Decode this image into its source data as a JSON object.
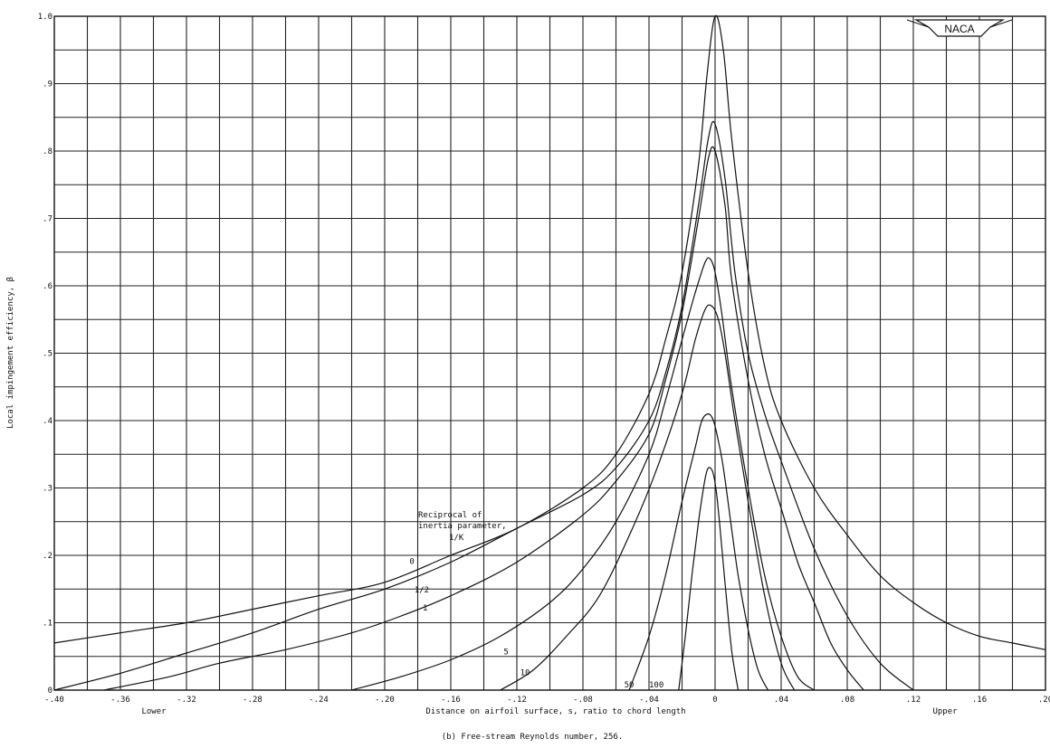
{
  "chart_data": {
    "type": "line",
    "xlabel": "Distance on airfoil surface, s, ratio to chord length",
    "ylabel": "Local impingement efficiency, β",
    "caption": "(b) Free-stream Reynolds number, 256.",
    "x_side_labels": {
      "left": "Lower",
      "right": "Upper"
    },
    "logo_text": "NACA",
    "xlim": [
      -0.4,
      0.2
    ],
    "ylim": [
      0,
      1.0
    ],
    "x_ticks": [
      {
        "v": -0.4,
        "label": "-.40"
      },
      {
        "v": -0.36,
        "label": "-.36"
      },
      {
        "v": -0.32,
        "label": "-.32"
      },
      {
        "v": -0.28,
        "label": "-.28"
      },
      {
        "v": -0.24,
        "label": "-.24"
      },
      {
        "v": -0.2,
        "label": "-.20"
      },
      {
        "v": -0.16,
        "label": "-.16"
      },
      {
        "v": -0.12,
        "label": "-.12"
      },
      {
        "v": -0.08,
        "label": "-.08"
      },
      {
        "v": -0.04,
        "label": "-.04"
      },
      {
        "v": 0.0,
        "label": "0"
      },
      {
        "v": 0.04,
        "label": ".04"
      },
      {
        "v": 0.08,
        "label": ".08"
      },
      {
        "v": 0.12,
        "label": ".12"
      },
      {
        "v": 0.16,
        "label": ".16"
      },
      {
        "v": 0.2,
        "label": ".20"
      }
    ],
    "y_ticks": [
      {
        "v": 0.0,
        "label": "0"
      },
      {
        "v": 0.1,
        "label": ".1"
      },
      {
        "v": 0.2,
        "label": ".2"
      },
      {
        "v": 0.3,
        "label": ".3"
      },
      {
        "v": 0.4,
        "label": ".4"
      },
      {
        "v": 0.5,
        "label": ".5"
      },
      {
        "v": 0.6,
        "label": ".6"
      },
      {
        "v": 0.7,
        "label": ".7"
      },
      {
        "v": 0.8,
        "label": ".8"
      },
      {
        "v": 0.9,
        "label": ".9"
      },
      {
        "v": 1.0,
        "label": "1.0"
      }
    ],
    "grid": true,
    "minor_grid_x_step": 0.02,
    "minor_grid_y_step": 0.05,
    "legend_title": [
      "Reciprocal of",
      "inertia parameter,",
      "1/K"
    ],
    "series": [
      {
        "name": "0",
        "x": [
          -0.4,
          -0.36,
          -0.32,
          -0.28,
          -0.24,
          -0.2,
          -0.16,
          -0.12,
          -0.08,
          -0.06,
          -0.04,
          -0.03,
          -0.02,
          -0.01,
          -0.005,
          0.0,
          0.005,
          0.01,
          0.02,
          0.03,
          0.04,
          0.06,
          0.08,
          0.1,
          0.12,
          0.14,
          0.16,
          0.18,
          0.2
        ],
        "y": [
          0.07,
          0.085,
          0.1,
          0.12,
          0.14,
          0.16,
          0.2,
          0.24,
          0.3,
          0.35,
          0.44,
          0.52,
          0.62,
          0.78,
          0.91,
          1.0,
          0.95,
          0.82,
          0.62,
          0.48,
          0.4,
          0.3,
          0.23,
          0.17,
          0.13,
          0.1,
          0.08,
          0.07,
          0.06
        ]
      },
      {
        "name": "1/2",
        "x": [
          -0.4,
          -0.36,
          -0.32,
          -0.28,
          -0.24,
          -0.2,
          -0.16,
          -0.12,
          -0.08,
          -0.06,
          -0.04,
          -0.03,
          -0.02,
          -0.01,
          -0.004,
          0.0,
          0.006,
          0.012,
          0.02,
          0.03,
          0.04,
          0.06,
          0.08,
          0.1,
          0.12
        ],
        "y": [
          0.0,
          0.025,
          0.055,
          0.085,
          0.12,
          0.15,
          0.19,
          0.24,
          0.29,
          0.33,
          0.4,
          0.47,
          0.57,
          0.72,
          0.82,
          0.84,
          0.76,
          0.62,
          0.5,
          0.41,
          0.34,
          0.21,
          0.11,
          0.04,
          0.0
        ]
      },
      {
        "name": "1",
        "x": [
          -0.37,
          -0.33,
          -0.3,
          -0.26,
          -0.22,
          -0.19,
          -0.16,
          -0.12,
          -0.08,
          -0.06,
          -0.04,
          -0.03,
          -0.02,
          -0.01,
          -0.004,
          0.0,
          0.006,
          0.01,
          0.02,
          0.03,
          0.04,
          0.05,
          0.06,
          0.07,
          0.08,
          0.09
        ],
        "y": [
          0.0,
          0.02,
          0.04,
          0.06,
          0.085,
          0.11,
          0.14,
          0.19,
          0.26,
          0.31,
          0.38,
          0.46,
          0.56,
          0.7,
          0.79,
          0.8,
          0.72,
          0.61,
          0.46,
          0.35,
          0.27,
          0.19,
          0.13,
          0.07,
          0.03,
          0.0
        ]
      },
      {
        "name": "5",
        "x": [
          -0.22,
          -0.19,
          -0.16,
          -0.13,
          -0.1,
          -0.08,
          -0.06,
          -0.04,
          -0.03,
          -0.02,
          -0.012,
          -0.006,
          -0.003,
          0.0,
          0.004,
          0.01,
          0.02,
          0.03,
          0.04,
          0.05,
          0.06
        ],
        "y": [
          0.0,
          0.02,
          0.045,
          0.08,
          0.13,
          0.18,
          0.25,
          0.35,
          0.43,
          0.52,
          0.59,
          0.635,
          0.64,
          0.62,
          0.56,
          0.45,
          0.3,
          0.17,
          0.08,
          0.02,
          0.0
        ]
      },
      {
        "name": "10",
        "x": [
          -0.13,
          -0.11,
          -0.09,
          -0.07,
          -0.05,
          -0.035,
          -0.02,
          -0.012,
          -0.006,
          -0.002,
          0.002,
          0.006,
          0.012,
          0.02,
          0.03,
          0.04,
          0.048
        ],
        "y": [
          0.0,
          0.03,
          0.08,
          0.14,
          0.24,
          0.33,
          0.44,
          0.52,
          0.565,
          0.57,
          0.55,
          0.5,
          0.4,
          0.28,
          0.14,
          0.04,
          0.0
        ]
      },
      {
        "name": "50",
        "x": [
          -0.052,
          -0.04,
          -0.03,
          -0.02,
          -0.012,
          -0.008,
          -0.004,
          -0.001,
          0.002,
          0.005,
          0.01,
          0.014,
          0.02,
          0.026,
          0.032
        ],
        "y": [
          0.0,
          0.08,
          0.17,
          0.28,
          0.36,
          0.4,
          0.41,
          0.4,
          0.37,
          0.33,
          0.24,
          0.17,
          0.09,
          0.03,
          0.0
        ]
      },
      {
        "name": "100",
        "x": [
          -0.022,
          -0.018,
          -0.014,
          -0.01,
          -0.007,
          -0.005,
          -0.003,
          -0.001,
          0.001,
          0.003,
          0.006,
          0.01,
          0.014
        ],
        "y": [
          0.0,
          0.08,
          0.17,
          0.25,
          0.3,
          0.325,
          0.33,
          0.32,
          0.29,
          0.24,
          0.16,
          0.06,
          0.0
        ]
      }
    ],
    "curve_labels": [
      {
        "text": "0",
        "x": -0.185,
        "y": 0.187
      },
      {
        "text": "1/2",
        "x": -0.182,
        "y": 0.145
      },
      {
        "text": "1",
        "x": -0.177,
        "y": 0.118
      },
      {
        "text": "5",
        "x": -0.128,
        "y": 0.053
      },
      {
        "text": "10",
        "x": -0.118,
        "y": 0.022
      },
      {
        "text": "50",
        "x": -0.055,
        "y": 0.004
      },
      {
        "text": "100",
        "x": -0.04,
        "y": 0.004
      }
    ]
  }
}
